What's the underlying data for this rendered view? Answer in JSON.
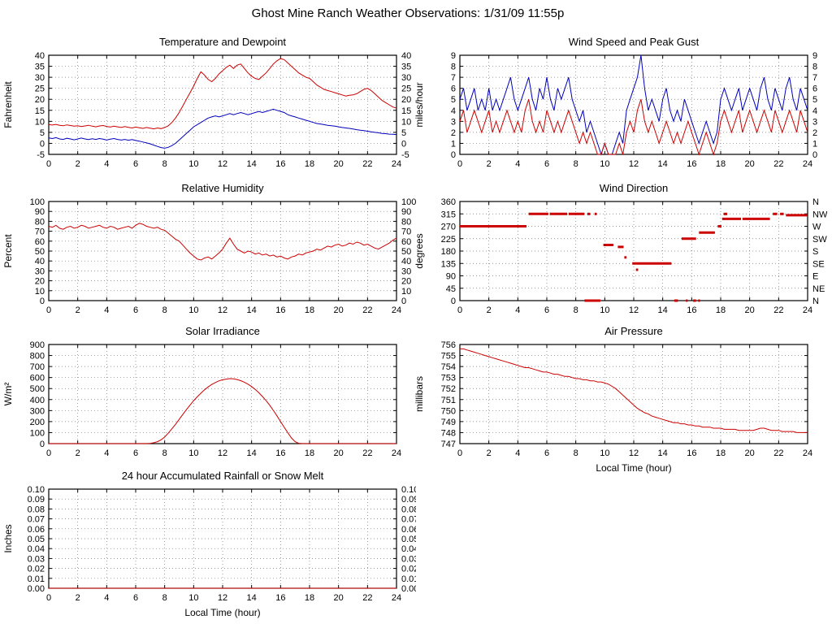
{
  "page": {
    "title": "Ghost Mine Ranch Weather Observations: 1/31/09 11:55p"
  },
  "colors": {
    "red": "#cc0000",
    "blue": "#0000bb",
    "grid": "#777777",
    "frame": "#000000"
  },
  "chart_data": [
    {
      "id": "temperature-dewpoint",
      "type": "line",
      "title": "Temperature and Dewpoint",
      "ylabel": "Fahrenheit",
      "xlabel": "",
      "xlim": [
        0,
        24
      ],
      "xtick_step": 2,
      "ylim": [
        -5,
        40
      ],
      "ytick_step": 5,
      "y_format": "int",
      "right_labels": "mirror",
      "series": [
        {
          "name": "Temperature",
          "color": "#cc0000",
          "x_start": 0,
          "x_step": 0.25,
          "values": [
            8.5,
            8.3,
            8.6,
            8.2,
            8.0,
            8.4,
            8.1,
            7.8,
            8.0,
            7.6,
            7.9,
            8.2,
            7.8,
            7.5,
            7.9,
            8.1,
            7.7,
            7.4,
            7.8,
            7.5,
            7.2,
            7.6,
            7.3,
            7.0,
            7.4,
            7.1,
            6.8,
            7.2,
            6.9,
            6.6,
            7.0,
            6.7,
            7.2,
            8.0,
            9.5,
            11.5,
            14.0,
            17.0,
            20.0,
            23.0,
            26.0,
            29.5,
            32.5,
            31.0,
            29.0,
            28.0,
            29.5,
            31.5,
            33.0,
            34.5,
            35.5,
            34.0,
            35.5,
            36.0,
            34.0,
            32.0,
            30.5,
            29.5,
            29.0,
            30.5,
            32.0,
            34.0,
            36.0,
            37.5,
            38.5,
            38.0,
            36.5,
            35.0,
            33.5,
            32.0,
            31.0,
            30.0,
            29.5,
            28.0,
            26.5,
            25.5,
            24.5,
            24.0,
            23.5,
            23.0,
            22.5,
            22.0,
            21.5,
            21.8,
            22.0,
            22.5,
            23.5,
            24.5,
            25.0,
            24.0,
            22.5,
            21.0,
            19.5,
            18.5,
            17.5,
            16.5,
            16.0
          ]
        },
        {
          "name": "Dewpoint",
          "color": "#0000bb",
          "x_start": 0,
          "x_step": 0.25,
          "values": [
            2.5,
            2.2,
            2.6,
            2.0,
            1.8,
            2.3,
            2.0,
            1.6,
            2.0,
            2.4,
            2.0,
            1.7,
            2.1,
            1.8,
            2.2,
            1.9,
            1.5,
            1.9,
            2.2,
            1.8,
            1.5,
            1.8,
            1.4,
            1.7,
            1.3,
            1.0,
            0.6,
            0.2,
            -0.2,
            -0.8,
            -1.4,
            -1.9,
            -2.2,
            -1.8,
            -1.0,
            0.0,
            1.5,
            3.0,
            4.5,
            6.0,
            7.5,
            8.5,
            9.5,
            10.5,
            11.5,
            12.0,
            12.5,
            12.0,
            12.5,
            13.0,
            13.5,
            13.0,
            13.5,
            14.0,
            13.5,
            13.0,
            13.5,
            14.0,
            14.5,
            14.0,
            14.5,
            15.0,
            15.5,
            15.0,
            14.5,
            14.0,
            13.0,
            12.5,
            12.0,
            11.5,
            11.0,
            10.5,
            10.0,
            9.5,
            9.0,
            8.8,
            8.5,
            8.2,
            8.0,
            7.8,
            7.5,
            7.2,
            7.0,
            6.8,
            6.5,
            6.2,
            6.0,
            5.8,
            5.5,
            5.2,
            5.0,
            4.8,
            4.5,
            4.4,
            4.2,
            4.1,
            4.0
          ]
        }
      ]
    },
    {
      "id": "wind-speed-gust",
      "type": "line",
      "title": "Wind Speed and Peak Gust",
      "ylabel": "miles/hour",
      "xlabel": "",
      "xlim": [
        0,
        24
      ],
      "xtick_step": 2,
      "ylim": [
        0,
        9
      ],
      "ytick_step": 1,
      "y_format": "int",
      "right_labels": "mirror",
      "series": [
        {
          "name": "Peak Gust",
          "color": "#0000bb",
          "x_start": 0,
          "x_step": 0.25,
          "values": [
            5,
            6,
            4,
            5,
            6,
            4,
            5,
            4,
            6,
            4,
            5,
            4,
            5,
            6,
            7,
            5,
            4,
            5,
            6,
            7,
            5,
            4,
            6,
            5,
            7,
            5,
            4,
            6,
            5,
            6,
            7,
            5,
            4,
            3,
            4,
            2,
            3,
            2,
            1,
            0,
            1,
            0,
            0,
            1,
            2,
            1,
            4,
            5,
            6,
            7,
            9,
            6,
            4,
            5,
            4,
            3,
            5,
            6,
            4,
            3,
            4,
            3,
            5,
            4,
            3,
            2,
            1,
            2,
            3,
            2,
            1,
            2,
            5,
            6,
            5,
            4,
            5,
            6,
            4,
            5,
            6,
            5,
            4,
            6,
            7,
            5,
            4,
            6,
            5,
            4,
            6,
            7,
            5,
            4,
            6,
            5,
            4
          ]
        },
        {
          "name": "Wind Speed",
          "color": "#cc0000",
          "x_start": 0,
          "x_step": 0.25,
          "values": [
            3,
            4,
            2,
            3,
            4,
            3,
            2,
            3,
            4,
            2,
            3,
            2,
            3,
            4,
            3,
            2,
            3,
            2,
            4,
            5,
            3,
            2,
            3,
            2,
            4,
            3,
            2,
            3,
            2,
            3,
            4,
            3,
            2,
            1,
            2,
            1,
            2,
            1,
            0,
            0,
            1,
            0,
            0,
            0,
            1,
            0,
            2,
            3,
            2,
            4,
            5,
            3,
            2,
            3,
            2,
            1,
            2,
            3,
            2,
            1,
            2,
            1,
            2,
            3,
            2,
            1,
            0,
            1,
            2,
            1,
            0,
            1,
            3,
            4,
            3,
            2,
            3,
            4,
            2,
            3,
            4,
            3,
            2,
            3,
            4,
            3,
            2,
            4,
            3,
            2,
            3,
            4,
            3,
            2,
            4,
            3,
            2
          ]
        }
      ]
    },
    {
      "id": "relative-humidity",
      "type": "line",
      "title": "Relative Humidity",
      "ylabel": "Percent",
      "xlabel": "",
      "xlim": [
        0,
        24
      ],
      "xtick_step": 2,
      "ylim": [
        0,
        100
      ],
      "ytick_step": 10,
      "y_format": "int",
      "right_labels": "mirror",
      "series": [
        {
          "name": "Relative Humidity",
          "color": "#cc0000",
          "x_start": 0,
          "x_step": 0.25,
          "values": [
            75,
            74,
            76,
            73,
            72,
            74,
            75,
            73,
            74,
            76,
            75,
            73,
            74,
            75,
            76,
            74,
            73,
            75,
            74,
            72,
            73,
            74,
            75,
            73,
            76,
            78,
            77,
            75,
            74,
            73,
            74,
            72,
            71,
            68,
            65,
            62,
            60,
            56,
            52,
            48,
            45,
            42,
            41,
            43,
            44,
            42,
            45,
            48,
            52,
            58,
            63,
            57,
            52,
            50,
            48,
            50,
            49,
            47,
            48,
            46,
            47,
            45,
            46,
            44,
            45,
            43,
            42,
            44,
            45,
            47,
            46,
            48,
            49,
            50,
            52,
            51,
            53,
            55,
            54,
            56,
            57,
            55,
            56,
            58,
            57,
            59,
            58,
            56,
            57,
            55,
            53,
            52,
            54,
            56,
            58,
            61,
            63
          ]
        }
      ]
    },
    {
      "id": "wind-direction",
      "type": "scatter",
      "title": "Wind Direction",
      "ylabel": "degrees",
      "xlabel": "",
      "xlim": [
        0,
        24
      ],
      "xtick_step": 2,
      "ylim": [
        0,
        360
      ],
      "ytick_step": 45,
      "y_format": "int",
      "right_labels": [
        "N",
        "NE",
        "E",
        "SE",
        "S",
        "SW",
        "W",
        "NW",
        "N"
      ],
      "segment_color": "#cc0000",
      "segments": [
        [
          0,
          4.6,
          270
        ],
        [
          4.75,
          6.1,
          315
        ],
        [
          6.2,
          7.4,
          315
        ],
        [
          7.5,
          8.6,
          315
        ],
        [
          8.8,
          9.0,
          315
        ],
        [
          9.3,
          9.45,
          315
        ],
        [
          8.6,
          9.7,
          0
        ],
        [
          9.9,
          10.6,
          202
        ],
        [
          10.9,
          11.3,
          195
        ],
        [
          11.35,
          11.5,
          157
        ],
        [
          11.9,
          14.6,
          135
        ],
        [
          12.15,
          12.3,
          112
        ],
        [
          14.8,
          15.05,
          0
        ],
        [
          15.3,
          16.3,
          225
        ],
        [
          15.6,
          15.7,
          0
        ],
        [
          16.1,
          16.3,
          0
        ],
        [
          16.45,
          16.55,
          0
        ],
        [
          16.5,
          17.6,
          247
        ],
        [
          17.8,
          18.05,
          270
        ],
        [
          18.1,
          19.4,
          297
        ],
        [
          18.2,
          18.45,
          315
        ],
        [
          19.5,
          21.4,
          297
        ],
        [
          21.6,
          21.9,
          315
        ],
        [
          22.1,
          22.35,
          315
        ],
        [
          22.5,
          24,
          310
        ]
      ]
    },
    {
      "id": "solar-irradiance",
      "type": "line",
      "title": "Solar Irradiance",
      "ylabel": "W/m²",
      "xlabel": "",
      "xlim": [
        0,
        24
      ],
      "xtick_step": 2,
      "ylim": [
        0,
        900
      ],
      "ytick_step": 100,
      "y_format": "int",
      "right_labels": null,
      "series": [
        {
          "name": "Solar Irradiance",
          "color": "#cc0000",
          "x_start": 0,
          "x_step": 0.25,
          "values": [
            0,
            0,
            0,
            0,
            0,
            0,
            0,
            0,
            0,
            0,
            0,
            0,
            0,
            0,
            0,
            0,
            0,
            0,
            0,
            0,
            0,
            0,
            0,
            0,
            0,
            0,
            0,
            0,
            2,
            8,
            18,
            35,
            60,
            95,
            135,
            175,
            220,
            265,
            308,
            350,
            390,
            425,
            458,
            488,
            515,
            537,
            555,
            570,
            580,
            586,
            590,
            588,
            582,
            572,
            558,
            540,
            518,
            492,
            462,
            428,
            390,
            348,
            302,
            252,
            200,
            148,
            98,
            52,
            18,
            3,
            0,
            0,
            0,
            0,
            0,
            0,
            0,
            0,
            0,
            0,
            0,
            0,
            0,
            0,
            0,
            0,
            0,
            0,
            0,
            0,
            0,
            0,
            0,
            0,
            0,
            0,
            0
          ]
        }
      ]
    },
    {
      "id": "air-pressure",
      "type": "line",
      "title": "Air Pressure",
      "ylabel": "millibars",
      "xlabel": "Local Time (hour)",
      "xlim": [
        0,
        24
      ],
      "xtick_step": 2,
      "ylim": [
        747,
        756
      ],
      "ytick_step": 1,
      "y_format": "int",
      "right_labels": null,
      "series": [
        {
          "name": "Air Pressure",
          "color": "#cc0000",
          "x_start": 0,
          "x_step": 0.25,
          "values": [
            755.6,
            755.6,
            755.5,
            755.4,
            755.3,
            755.2,
            755.1,
            755.0,
            754.9,
            754.8,
            754.7,
            754.6,
            754.5,
            754.4,
            754.3,
            754.2,
            754.1,
            754.0,
            753.9,
            753.9,
            753.8,
            753.7,
            753.6,
            753.5,
            753.5,
            753.4,
            753.3,
            753.3,
            753.2,
            753.1,
            753.1,
            753.0,
            752.9,
            752.9,
            752.8,
            752.8,
            752.7,
            752.7,
            752.6,
            752.6,
            752.5,
            752.4,
            752.2,
            752.0,
            751.7,
            751.4,
            751.1,
            750.8,
            750.5,
            750.2,
            750.0,
            749.8,
            749.7,
            749.5,
            749.4,
            749.3,
            749.2,
            749.1,
            749.0,
            748.9,
            748.9,
            748.8,
            748.8,
            748.7,
            748.7,
            748.6,
            748.6,
            748.5,
            748.5,
            748.5,
            748.4,
            748.4,
            748.4,
            748.3,
            748.3,
            748.3,
            748.3,
            748.2,
            748.2,
            748.2,
            748.2,
            748.2,
            748.3,
            748.4,
            748.4,
            748.3,
            748.2,
            748.2,
            748.2,
            748.1,
            748.1,
            748.1,
            748.1,
            748.0,
            748.0,
            748.0,
            748.0
          ]
        }
      ]
    },
    {
      "id": "rainfall",
      "type": "line",
      "title": "24 hour Accumulated Rainfall or Snow Melt",
      "ylabel": "Inches",
      "xlabel": "Local Time (hour)",
      "xlim": [
        0,
        24
      ],
      "xtick_step": 2,
      "ylim": [
        0,
        0.1
      ],
      "ytick_step": 0.01,
      "y_format": "2dp",
      "right_labels": "mirror",
      "series": [
        {
          "name": "Accumulated Rainfall",
          "color": "#cc0000",
          "x_start": 0,
          "x_step": 12,
          "values": [
            0,
            0,
            0
          ]
        }
      ]
    }
  ]
}
